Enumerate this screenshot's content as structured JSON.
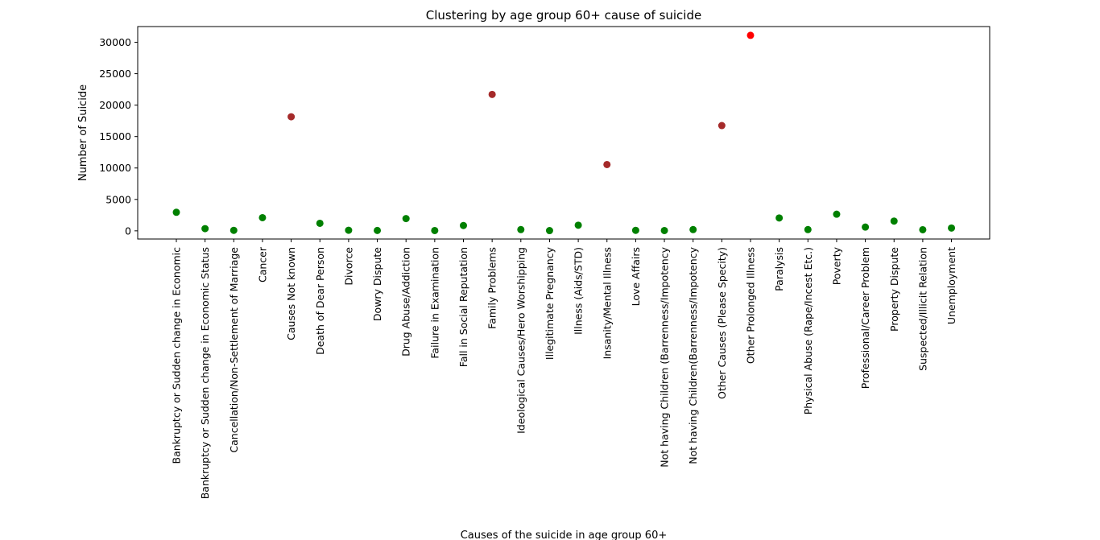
{
  "chart_data": {
    "type": "scatter",
    "title": "Clustering by age group 60+ cause of  suicide",
    "xlabel": "Causes of the suicide in age group 60+",
    "ylabel": "Number of Suicide",
    "ylim": [
      -1300,
      32500
    ],
    "yticks": [
      0,
      5000,
      10000,
      15000,
      20000,
      25000,
      30000
    ],
    "grid": false,
    "legend": "none",
    "categories": [
      "Bankruptcy or Sudden change in Economic",
      "Bankruptcy or Sudden change in Economic Status",
      "Cancellation/Non-Settlement of Marriage",
      "Cancer",
      "Causes Not known",
      "Death of Dear Person",
      "Divorce",
      "Dowry Dispute",
      "Drug Abuse/Addiction",
      "Failure in Examination",
      "Fall in Social Reputation",
      "Family Problems",
      "Ideological Causes/Hero Worshipping",
      "Illegitimate Pregnancy",
      "Illness (Aids/STD)",
      "Insanity/Mental Illness",
      "Love Affairs",
      "Not having Children (Barrenness/Impotency",
      "Not having Children(Barrenness/Impotency",
      "Other Causes (Please Specity)",
      "Other Prolonged Illness",
      "Paralysis",
      "Physical Abuse (Rape/Incest Etc.)",
      "Poverty",
      "Professional/Career Problem",
      "Property Dispute",
      "Suspected/Illicit Relation",
      "Unemployment"
    ],
    "values": [
      2950,
      350,
      80,
      2100,
      18150,
      1200,
      100,
      60,
      1950,
      50,
      850,
      21700,
      200,
      40,
      900,
      10550,
      80,
      50,
      200,
      16750,
      31100,
      2050,
      200,
      2650,
      600,
      1550,
      180,
      450
    ],
    "clusters": [
      0,
      0,
      0,
      0,
      1,
      0,
      0,
      0,
      0,
      0,
      0,
      1,
      0,
      0,
      0,
      1,
      0,
      0,
      0,
      1,
      2,
      0,
      0,
      0,
      0,
      0,
      0,
      0
    ],
    "cluster_colors": [
      "#008000",
      "#a52a2a",
      "#ff0000"
    ]
  }
}
